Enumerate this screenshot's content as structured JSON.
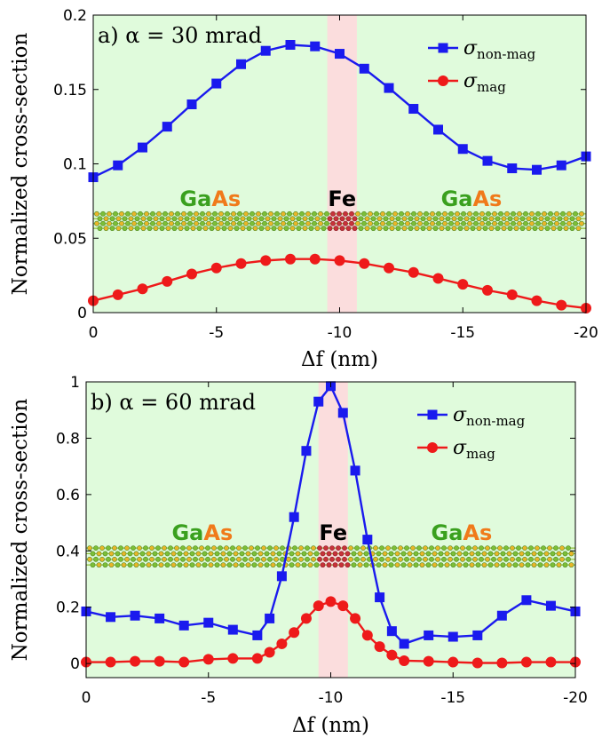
{
  "colors": {
    "background": "#e0fbdc",
    "fe_band": "#fbdddd",
    "non_mag": "#1a1aee",
    "mag": "#ee1a1a",
    "gaas_ga": "#3aa01e",
    "gaas_as": "#f07a1a",
    "fe_text": "#d41a1a"
  },
  "chart_data": [
    {
      "type": "line",
      "panel_label": "a) α = 30 mrad",
      "ylabel": "Normalized cross-section",
      "xlabel": "Δf (nm)",
      "x": [
        0,
        -1,
        -2,
        -3,
        -4,
        -5,
        -6,
        -7,
        -8,
        -9,
        -10,
        -11,
        -12,
        -13,
        -14,
        -15,
        -16,
        -17,
        -18,
        -19,
        -20
      ],
      "x_tick_labels": [
        "0",
        "-5",
        "-10",
        "-15",
        "-20"
      ],
      "y_tick_labels": [
        "0",
        "0.05",
        "0.1",
        "0.15",
        "0.2"
      ],
      "xlim": [
        0,
        -20
      ],
      "ylim": [
        0,
        0.2
      ],
      "fe_band": [
        -9.5,
        -10.7
      ],
      "legend_position": "top-right",
      "series": [
        {
          "name": "σnon-mag",
          "marker": "square",
          "values": [
            0.091,
            0.099,
            0.111,
            0.125,
            0.14,
            0.154,
            0.167,
            0.176,
            0.18,
            0.179,
            0.174,
            0.164,
            0.151,
            0.137,
            0.123,
            0.11,
            0.102,
            0.097,
            0.096,
            0.099,
            0.105
          ]
        },
        {
          "name": "σmag",
          "marker": "circle",
          "values": [
            0.008,
            0.012,
            0.016,
            0.021,
            0.026,
            0.03,
            0.033,
            0.035,
            0.036,
            0.036,
            0.035,
            0.033,
            0.03,
            0.027,
            0.023,
            0.019,
            0.015,
            0.012,
            0.008,
            0.005,
            0.003
          ]
        }
      ],
      "annotations": {
        "left": "GaAs",
        "center": "Fe",
        "right": "GaAs"
      },
      "atom_strip_y": [
        0.055,
        0.068
      ]
    },
    {
      "type": "line",
      "panel_label": "b) α = 60 mrad",
      "ylabel": "Normalized cross-section",
      "xlabel": "Δf (nm)",
      "x": [
        0,
        -1,
        -2,
        -3,
        -4,
        -5,
        -6,
        -7,
        -7.5,
        -8,
        -8.5,
        -9,
        -9.5,
        -10,
        -10.5,
        -11,
        -11.5,
        -12,
        -12.5,
        -13,
        -14,
        -15,
        -16,
        -17,
        -18,
        -19,
        -20
      ],
      "x_tick_labels": [
        "0",
        "-5",
        "-10",
        "-15",
        "-20"
      ],
      "y_tick_labels": [
        "0",
        "0.2",
        "0.4",
        "0.6",
        "0.8",
        "1"
      ],
      "xlim": [
        0,
        -20
      ],
      "ylim": [
        -0.05,
        1.0
      ],
      "fe_band": [
        -9.5,
        -10.7
      ],
      "legend_position": "top-right",
      "series": [
        {
          "name": "σnon-mag",
          "marker": "square",
          "values": [
            0.185,
            0.165,
            0.17,
            0.16,
            0.135,
            0.145,
            0.12,
            0.1,
            0.16,
            0.31,
            0.52,
            0.755,
            0.93,
            0.985,
            0.89,
            0.685,
            0.44,
            0.235,
            0.115,
            0.07,
            0.1,
            0.095,
            0.1,
            0.17,
            0.225,
            0.205,
            0.185
          ]
        },
        {
          "name": "σmag",
          "marker": "circle",
          "values": [
            0.005,
            0.005,
            0.008,
            0.008,
            0.005,
            0.015,
            0.018,
            0.018,
            0.04,
            0.07,
            0.11,
            0.16,
            0.205,
            0.22,
            0.205,
            0.16,
            0.1,
            0.06,
            0.03,
            0.01,
            0.008,
            0.005,
            0.002,
            0.002,
            0.005,
            0.005,
            0.005
          ]
        }
      ],
      "annotations": {
        "left": "GaAs",
        "center": "Fe",
        "right": "GaAs"
      },
      "atom_strip_y": [
        0.34,
        0.42
      ]
    }
  ]
}
